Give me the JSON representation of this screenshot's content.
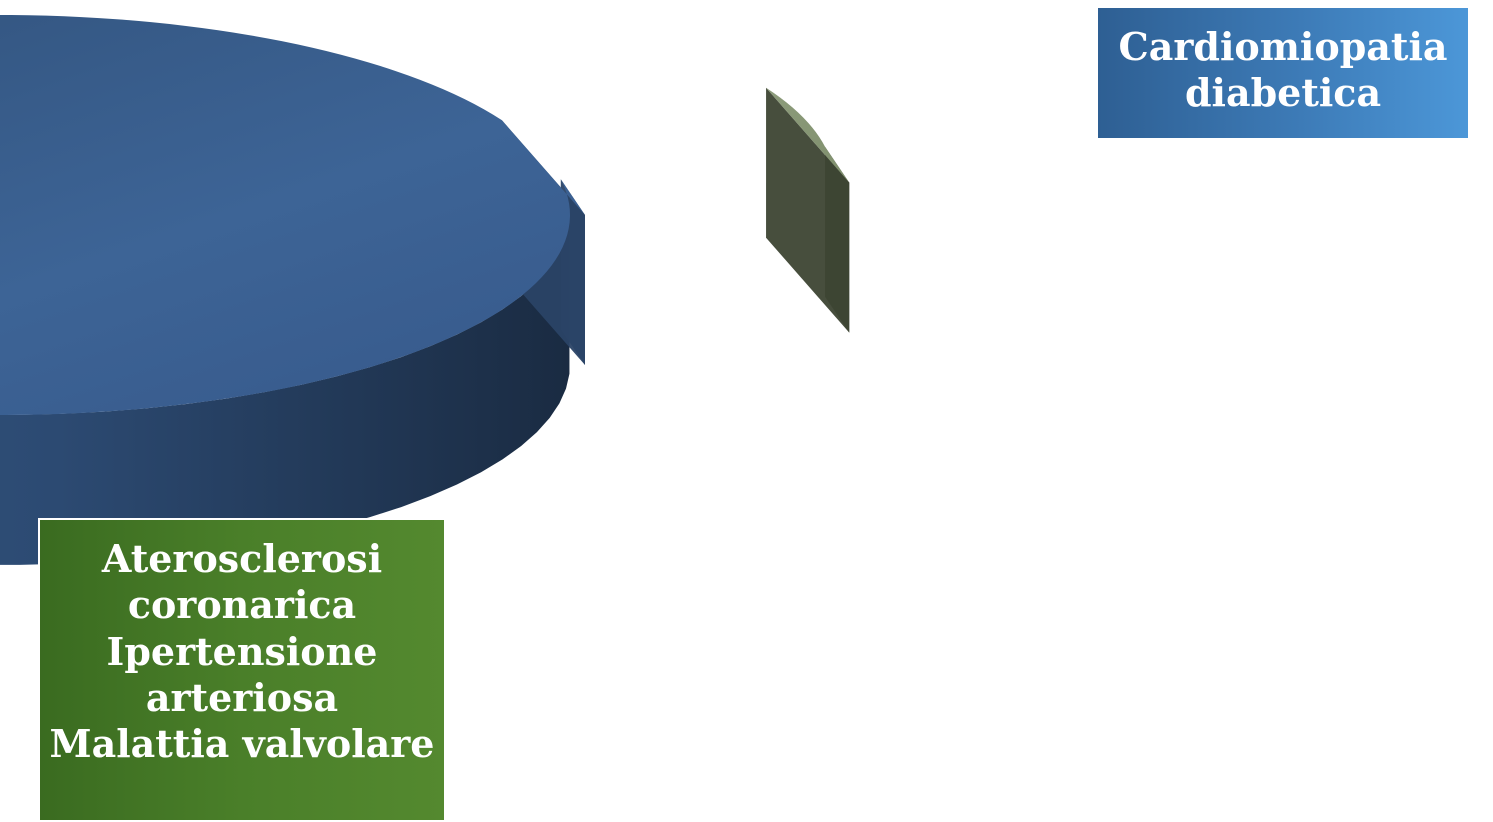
{
  "chart_data": {
    "type": "pie",
    "style": "3d-exploded",
    "slices": [
      {
        "key": "main",
        "value": 95,
        "top_color": "#3a5e8c",
        "side_color": "#2a4366",
        "lines": [
          "Aterosclerosi",
          "coronarica",
          "Ipertensione",
          "arteriosa",
          "Malattia valvolare"
        ]
      },
      {
        "key": "cardio",
        "value": 5,
        "top_color": "#8a9a78",
        "side_color": "#3d4433",
        "lines": [
          "Cardiomiopatia",
          "diabetica"
        ]
      }
    ],
    "legend": "none",
    "label_placement": "boxes outside slices"
  },
  "labels": {
    "cardio": {
      "line1": "Cardiomiopatia",
      "line2": "diabetica",
      "background": "#3d7bb7"
    },
    "athero": {
      "line1": "Aterosclerosi",
      "line2": "coronarica",
      "line3": "Ipertensione",
      "line4": "arteriosa",
      "line5": "Malattia valvolare",
      "background": "#4a7f29"
    }
  }
}
